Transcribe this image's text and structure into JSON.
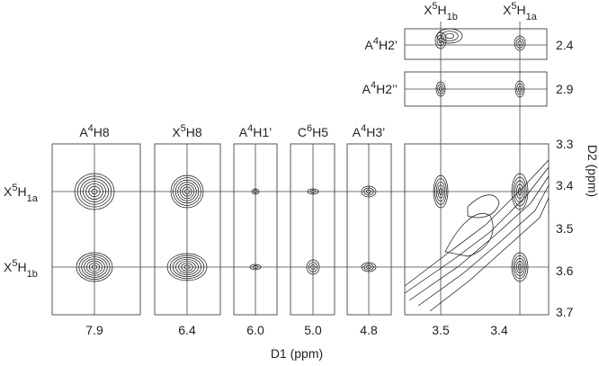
{
  "strips": [
    {
      "label": [
        "A",
        "4",
        "H8"
      ],
      "tick": "7.9"
    },
    {
      "label": [
        "X",
        "5",
        "H8"
      ],
      "tick": "6.4"
    },
    {
      "label": [
        "A",
        "4",
        "H1’"
      ],
      "tick": "6.0"
    },
    {
      "label": [
        "C",
        "6",
        "H5"
      ],
      "tick": "5.0"
    },
    {
      "label": [
        "A",
        "4",
        "H3’"
      ],
      "tick": "4.8"
    }
  ],
  "rows": [
    [
      "X",
      "5",
      "H",
      "1a"
    ],
    [
      "X",
      "5",
      "H",
      "1b"
    ]
  ],
  "top_rows": [
    {
      "label": [
        "A",
        "4",
        "H2’"
      ],
      "tick": "2.4"
    },
    {
      "label": [
        "A",
        "4",
        "H2’’"
      ],
      "tick": "2.9"
    }
  ],
  "columns": [
    [
      "X",
      "5",
      "H",
      "1b"
    ],
    [
      "X",
      "5",
      "H",
      "1a"
    ]
  ],
  "x_axis": {
    "title": "D1 (ppm)",
    "ticks": [
      "3.5",
      "3.4"
    ]
  },
  "y_axis": {
    "title": "D2 (ppm)",
    "ticks": [
      "3.3",
      "3.4",
      "3.5",
      "3.6",
      "3.7"
    ]
  }
}
